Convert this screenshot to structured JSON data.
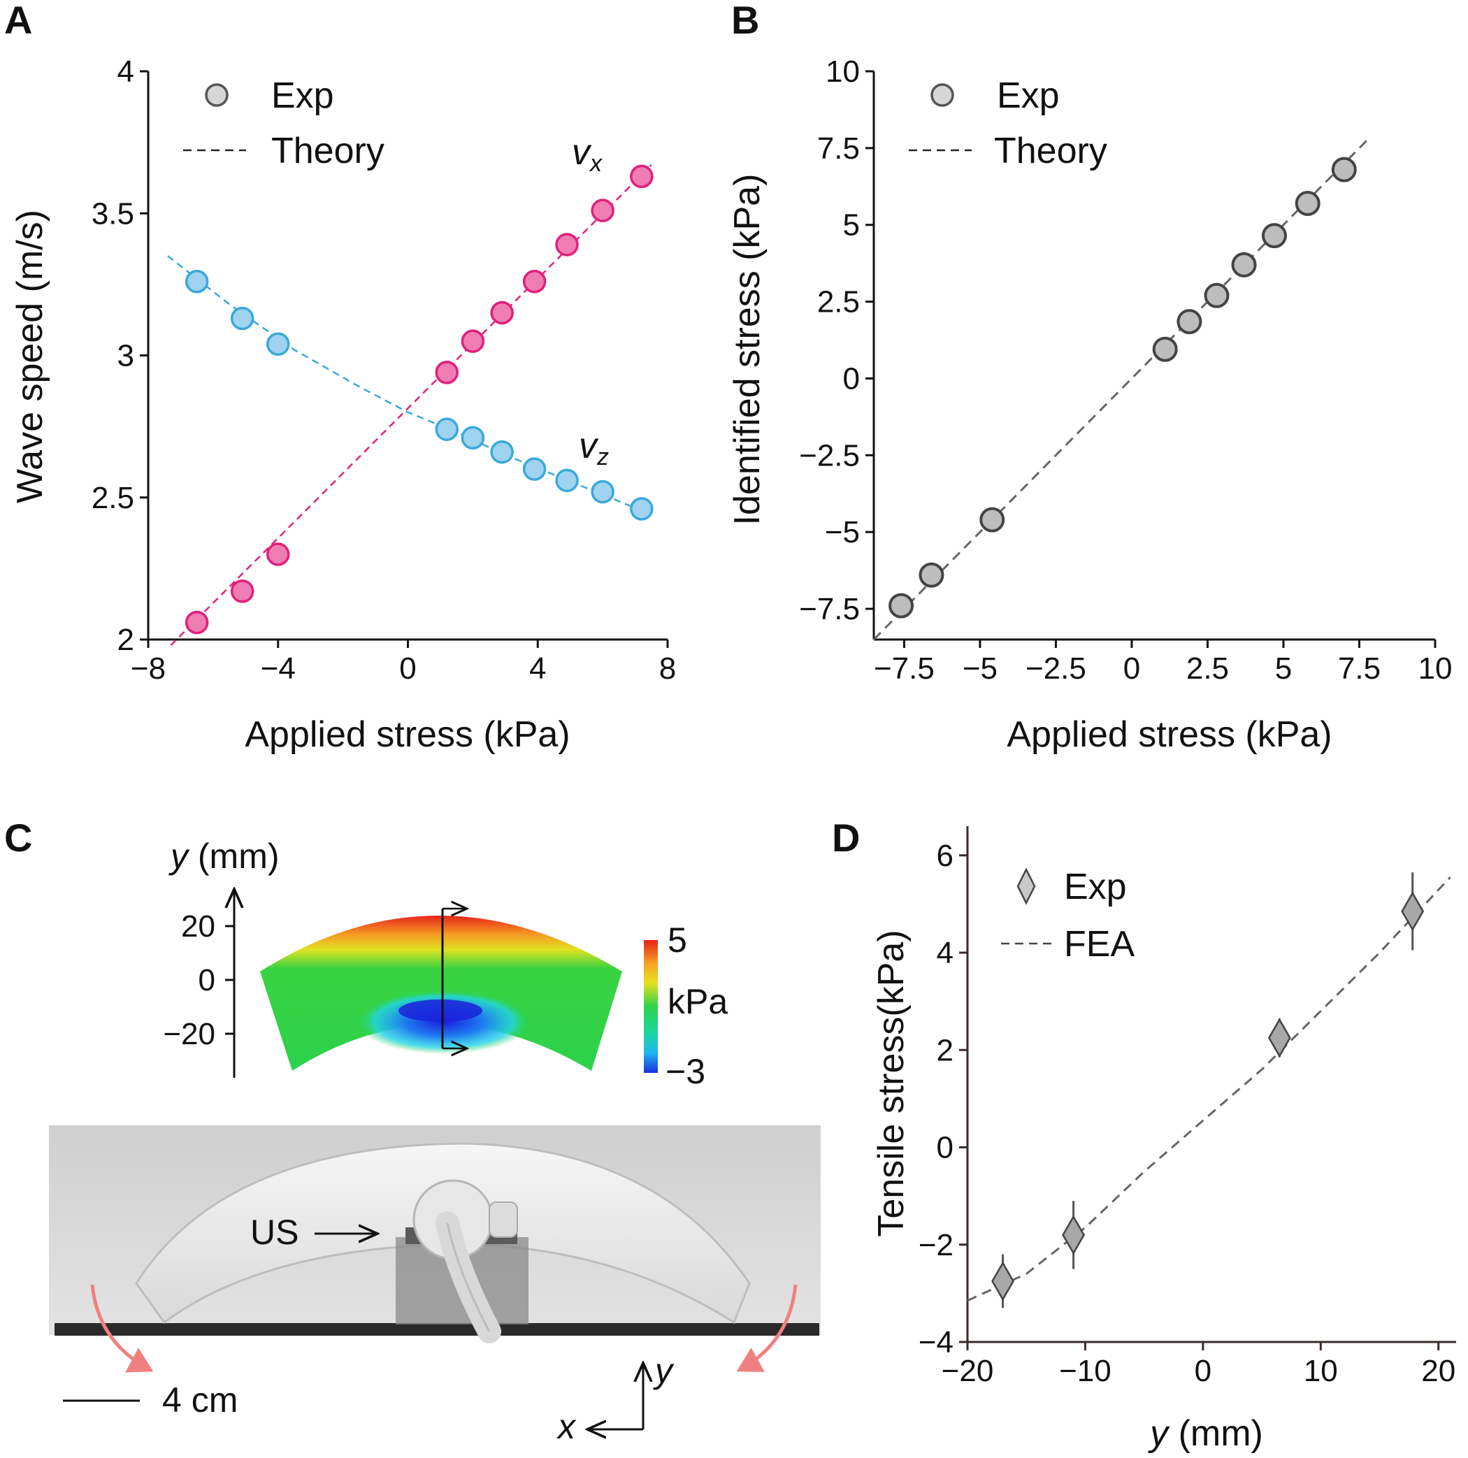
{
  "colors": {
    "vx": "#e0207a",
    "vx_fill": "#f07cb4",
    "vz": "#3aa8dc",
    "vz_fill": "#9fd3f0",
    "gray_edge": "#444444",
    "gray_fill": "#bdbdbd",
    "theory_line": "#666666"
  },
  "panels": {
    "A": {
      "letter": "A"
    },
    "B": {
      "letter": "B"
    },
    "C": {
      "letter": "C"
    },
    "D": {
      "letter": "D"
    }
  },
  "chart_data": [
    {
      "panel": "A",
      "type": "scatter",
      "xlabel": "Applied stress (kPa)",
      "ylabel": "Wave speed (m/s)",
      "xlim": [
        -8,
        8
      ],
      "ylim": [
        2,
        4
      ],
      "xticks": [
        -8,
        -4,
        0,
        4,
        8
      ],
      "xtick_labels": [
        "−8",
        "−4",
        "0",
        "4",
        "8"
      ],
      "yticks": [
        2,
        2.5,
        3,
        3.5,
        4
      ],
      "ytick_labels": [
        "2",
        "2.5",
        "3",
        "3.5",
        "4"
      ],
      "legend": [
        {
          "label": "Exp",
          "marker": "circle"
        },
        {
          "label": "Theory",
          "marker": "dashed-line"
        }
      ],
      "series": [
        {
          "name": "v",
          "sub": "x",
          "x": [
            -6.5,
            -5.1,
            -4.0,
            1.2,
            2.0,
            2.9,
            3.9,
            4.9,
            6.0,
            7.2
          ],
          "y": [
            2.06,
            2.17,
            2.3,
            2.94,
            3.05,
            3.15,
            3.26,
            3.39,
            3.51,
            3.63
          ],
          "theory_x": [
            -7.3,
            7.5
          ],
          "theory_y": [
            1.98,
            3.67
          ]
        },
        {
          "name": "v",
          "sub": "z",
          "x": [
            -6.5,
            -5.1,
            -4.0,
            1.2,
            2.0,
            2.9,
            3.9,
            4.9,
            6.0,
            7.2
          ],
          "y": [
            3.26,
            3.13,
            3.04,
            2.74,
            2.71,
            2.66,
            2.6,
            2.56,
            2.52,
            2.46
          ],
          "theory_x": [
            -7.4,
            -5.5,
            -3.5,
            -1.5,
            0,
            1.5,
            3.0,
            4.5,
            6.0,
            7.5
          ],
          "theory_y": [
            3.35,
            3.18,
            3.02,
            2.89,
            2.8,
            2.73,
            2.65,
            2.58,
            2.51,
            2.44
          ]
        }
      ]
    },
    {
      "panel": "B",
      "type": "scatter",
      "xlabel": "Applied stress (kPa)",
      "ylabel": "Identified stress (kPa)",
      "xlim": [
        -8.5,
        10
      ],
      "ylim": [
        -8.5,
        10
      ],
      "xticks": [
        -7.5,
        -5,
        -2.5,
        0,
        2.5,
        5,
        7.5,
        10
      ],
      "xtick_labels": [
        "−7.5",
        "−5",
        "−2.5",
        "0",
        "2.5",
        "5",
        "7.5",
        "10"
      ],
      "yticks": [
        -7.5,
        -5,
        -2.5,
        0,
        2.5,
        5,
        7.5,
        10
      ],
      "ytick_labels": [
        "−7.5",
        "−5",
        "−2.5",
        "0",
        "2.5",
        "5",
        "7.5",
        "10"
      ],
      "legend": [
        {
          "label": "Exp",
          "marker": "circle"
        },
        {
          "label": "Theory",
          "marker": "dashed-line"
        }
      ],
      "series": [
        {
          "name": "Exp",
          "x": [
            -7.6,
            -6.6,
            -4.6,
            1.1,
            1.9,
            2.8,
            3.7,
            4.7,
            5.8,
            7.0
          ],
          "y": [
            -7.4,
            -6.4,
            -4.6,
            0.95,
            1.85,
            2.7,
            3.7,
            4.65,
            5.7,
            6.8
          ]
        }
      ],
      "theory_x": [
        -8.5,
        7.8
      ],
      "theory_y": [
        -8.5,
        7.8
      ]
    },
    {
      "panel": "D",
      "type": "scatter",
      "xlabel_var": "y",
      "xlabel_unit": " (mm)",
      "ylabel": "Tensile stress(kPa)",
      "xlim": [
        -20,
        21.5
      ],
      "ylim": [
        -4,
        6.6
      ],
      "xticks": [
        -20,
        -10,
        0,
        10,
        20
      ],
      "xtick_labels": [
        "−20",
        "−10",
        "0",
        "10",
        "20"
      ],
      "yticks": [
        -4,
        -2,
        0,
        2,
        4,
        6
      ],
      "ytick_labels": [
        "−4",
        "−2",
        "0",
        "2",
        "4",
        "6"
      ],
      "legend": [
        {
          "label": "Exp",
          "marker": "diamond"
        },
        {
          "label": "FEA",
          "marker": "dashed-line"
        }
      ],
      "series": [
        {
          "name": "Exp",
          "x": [
            -17,
            -11,
            6.5,
            17.8
          ],
          "y": [
            -2.75,
            -1.8,
            2.25,
            4.85
          ],
          "err": [
            0.55,
            0.7,
            0.4,
            0.8
          ]
        }
      ],
      "fea_x": [
        -20,
        -15,
        -10,
        -5,
        0,
        5,
        10,
        15,
        21
      ],
      "fea_y": [
        -3.15,
        -2.6,
        -1.65,
        -0.5,
        0.55,
        1.6,
        2.8,
        4.0,
        5.55
      ]
    }
  ],
  "panel_c": {
    "axis_var": "y",
    "axis_unit": " (mm)",
    "yticks": [
      "20",
      "0",
      "−20"
    ],
    "colorbar_max": "5",
    "colorbar_unit": "kPa",
    "colorbar_min": "−3",
    "us_label": "US",
    "scale_bar_label": "4 cm",
    "coord_x": "x",
    "coord_y": "y"
  }
}
